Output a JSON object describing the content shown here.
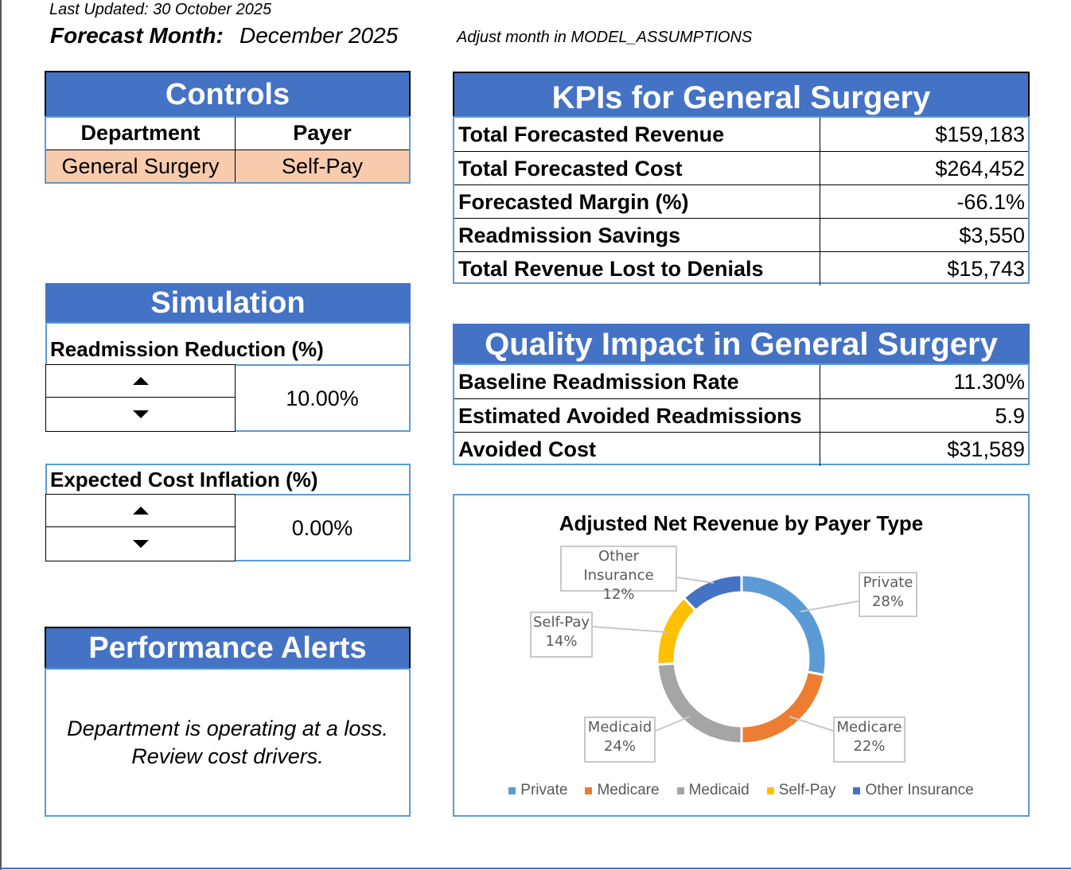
{
  "header": {
    "last_updated": "Last Updated: 30 October 2025",
    "forecast_label": "Forecast Month:",
    "forecast_value": "December 2025",
    "adjust_note": "Adjust month in MODEL_ASSUMPTIONS"
  },
  "controls": {
    "title": "Controls",
    "col1": "Department",
    "col2": "Payer",
    "department": "General Surgery",
    "payer": "Self-Pay"
  },
  "simulation": {
    "title": "Simulation",
    "readmission_label": "Readmission Reduction (%)",
    "readmission_value": "10.00%",
    "inflation_label": "Expected Cost Inflation (%)",
    "inflation_value": "0.00%"
  },
  "alerts": {
    "title": "Performance Alerts",
    "line1": "Department is operating at a loss.",
    "line2": "Review cost drivers."
  },
  "kpis": {
    "title": "KPIs for General Surgery",
    "rows": [
      {
        "label": "Total Forecasted Revenue",
        "value": "$159,183"
      },
      {
        "label": "Total Forecasted Cost",
        "value": "$264,452"
      },
      {
        "label": "Forecasted Margin (%)",
        "value": "-66.1%"
      },
      {
        "label": "Readmission Savings",
        "value": "$3,550"
      },
      {
        "label": "Total Revenue Lost to Denials",
        "value": "$15,743"
      }
    ]
  },
  "quality": {
    "title": "Quality Impact in General Surgery",
    "rows": [
      {
        "label": "Baseline Readmission Rate",
        "value": "11.30%"
      },
      {
        "label": "Estimated Avoided Readmissions",
        "value": "5.9"
      },
      {
        "label": "Avoided Cost",
        "value": "$31,589"
      }
    ]
  },
  "chart_data": {
    "type": "pie",
    "subtype": "donut",
    "title": "Adjusted Net Revenue by Payer Type",
    "legend": "bottom",
    "categories": [
      "Private",
      "Medicare",
      "Medicaid",
      "Self-Pay",
      "Other Insurance"
    ],
    "values": [
      28,
      22,
      24,
      14,
      12
    ],
    "labels": [
      "28%",
      "22%",
      "24%",
      "14%",
      "12%"
    ],
    "colors": [
      "#5b9bd5",
      "#ed7d31",
      "#a5a5a5",
      "#ffc000",
      "#4472c4"
    ]
  }
}
